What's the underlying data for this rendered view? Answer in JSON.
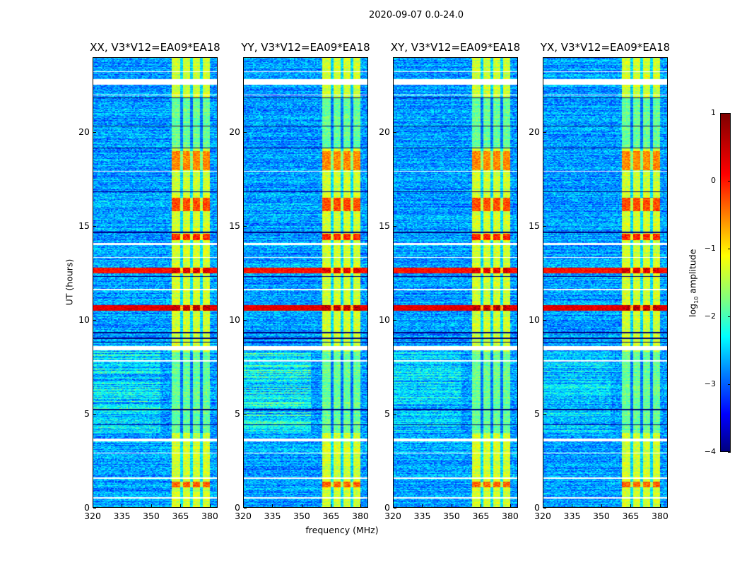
{
  "chart_data": {
    "type": "heatmap",
    "title": "2020-09-07 0.0-24.0",
    "xlabel": "frequency (MHz)",
    "ylabel": "UT (hours)",
    "xlim": [
      320,
      384
    ],
    "ylim": [
      0,
      24
    ],
    "xticks": [
      "320",
      "335",
      "350",
      "365",
      "380"
    ],
    "xtick_values": [
      320,
      335,
      350,
      365,
      380
    ],
    "yticks": [
      "0",
      "5",
      "10",
      "15",
      "20"
    ],
    "ytick_values": [
      0,
      5,
      10,
      15,
      20
    ],
    "panels": [
      {
        "title": "XX, V3*V12=EA09*EA18",
        "low_band_excess": 0.35
      },
      {
        "title": "YY, V3*V12=EA09*EA18",
        "low_band_excess": 0.45
      },
      {
        "title": "XY, V3*V12=EA09*EA18",
        "low_band_excess": 0.25
      },
      {
        "title": "YX, V3*V12=EA09*EA18",
        "low_band_excess": 0.2
      }
    ],
    "colorbar": {
      "label_main": "log",
      "label_sub": "10",
      "label_tail": " amplitude",
      "cmap": "jet",
      "vmin": -4,
      "vmax": 1,
      "ticks": [
        "1",
        "0",
        "−1",
        "−2",
        "−3",
        "−4"
      ],
      "tick_values": [
        1,
        0,
        -1,
        -2,
        -3,
        -4
      ]
    },
    "features": {
      "background_log_amp": -2.6,
      "band_mhz": [
        360.5,
        380
      ],
      "band_log_amp": -1.1,
      "band_notches_mhz": [
        365.5,
        370.5,
        375.5
      ],
      "flagged_hours_white": [
        [
          22.55,
          22.85
        ],
        [
          21.95,
          22.0
        ],
        [
          14.0,
          14.1
        ],
        [
          8.4,
          8.6
        ],
        [
          3.55,
          3.7
        ],
        [
          23.2,
          23.25
        ],
        [
          17.9,
          17.95
        ],
        [
          13.3,
          13.35
        ],
        [
          11.6,
          11.65
        ],
        [
          7.8,
          7.85
        ],
        [
          2.9,
          2.95
        ],
        [
          1.55,
          1.6
        ],
        [
          0.5,
          0.55
        ]
      ],
      "flagged_hours_black": [
        [
          21.8,
          21.85
        ],
        [
          20.3,
          20.35
        ],
        [
          19.15,
          19.2
        ],
        [
          16.8,
          16.85
        ],
        [
          14.65,
          14.7
        ],
        [
          12.3,
          12.35
        ],
        [
          9.3,
          9.35
        ],
        [
          9.0,
          9.05
        ],
        [
          8.8,
          8.85
        ],
        [
          5.2,
          5.25
        ],
        [
          4.4,
          4.45
        ]
      ],
      "bright_hours": [
        [
          10.5,
          10.8,
          0.7
        ],
        [
          12.5,
          12.8,
          0.5
        ],
        [
          14.25,
          14.6,
          0.2
        ],
        [
          15.8,
          16.5,
          0.0
        ],
        [
          18.0,
          19.0,
          -0.3
        ],
        [
          1.1,
          1.4,
          -0.1
        ]
      ],
      "band_weak_hours": [
        [
          4.0,
          8.3
        ],
        [
          19.2,
          21.8
        ]
      ]
    }
  }
}
